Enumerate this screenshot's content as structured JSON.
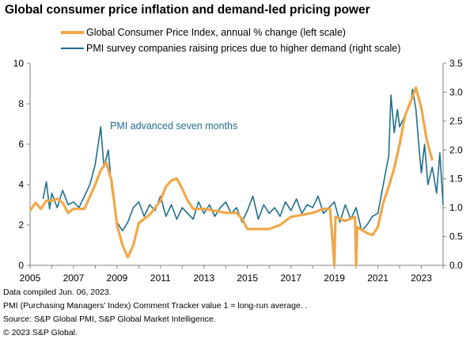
{
  "header": {
    "title": "Global consumer price inflation and demand-led pricing power"
  },
  "chart_data": {
    "type": "line",
    "title": "Global consumer price inflation and demand-led pricing power",
    "xlabel": "",
    "ylabel": "",
    "x_range": [
      2005,
      2024.0
    ],
    "x_ticks": [
      "2005",
      "2007",
      "2009",
      "2011",
      "2013",
      "2015",
      "2017",
      "2019",
      "2021",
      "2023"
    ],
    "y_left": {
      "range": [
        0,
        10
      ],
      "ticks": [
        "0",
        "2",
        "4",
        "6",
        "8",
        "10"
      ]
    },
    "y_right": {
      "range": [
        0.0,
        3.5
      ],
      "ticks": [
        "0.0",
        "0.5",
        "1.0",
        "1.5",
        "2.0",
        "2.5",
        "3.0",
        "3.5"
      ]
    },
    "grid": false,
    "legend_position": "top",
    "colors": {
      "cpi": "#f0a848",
      "pmi": "#1f6e8c"
    },
    "series": [
      {
        "name": "Global Consumer Price Index, annual % change (left scale)",
        "axis": "left",
        "points": [
          [
            2005.0,
            2.7
          ],
          [
            2005.25,
            3.1
          ],
          [
            2005.5,
            2.8
          ],
          [
            2005.75,
            3.2
          ],
          [
            2006.0,
            3.2
          ],
          [
            2006.25,
            3.3
          ],
          [
            2006.5,
            3.1
          ],
          [
            2006.75,
            2.6
          ],
          [
            2007.0,
            2.8
          ],
          [
            2007.25,
            2.8
          ],
          [
            2007.5,
            2.8
          ],
          [
            2007.75,
            3.4
          ],
          [
            2008.0,
            4.0
          ],
          [
            2008.25,
            4.7
          ],
          [
            2008.5,
            5.1
          ],
          [
            2008.75,
            4.2
          ],
          [
            2009.0,
            2.0
          ],
          [
            2009.25,
            1.0
          ],
          [
            2009.5,
            0.4
          ],
          [
            2009.75,
            1.0
          ],
          [
            2010.0,
            2.1
          ],
          [
            2010.5,
            2.5
          ],
          [
            2011.0,
            3.2
          ],
          [
            2011.25,
            3.9
          ],
          [
            2011.5,
            4.2
          ],
          [
            2011.75,
            4.3
          ],
          [
            2012.0,
            3.8
          ],
          [
            2012.25,
            3.2
          ],
          [
            2012.5,
            2.8
          ],
          [
            2013.0,
            2.8
          ],
          [
            2013.5,
            2.7
          ],
          [
            2014.0,
            2.6
          ],
          [
            2014.5,
            2.6
          ],
          [
            2014.75,
            2.3
          ],
          [
            2015.0,
            1.8
          ],
          [
            2015.5,
            1.8
          ],
          [
            2016.0,
            1.8
          ],
          [
            2016.5,
            2.0
          ],
          [
            2017.0,
            2.4
          ],
          [
            2017.5,
            2.5
          ],
          [
            2018.0,
            2.6
          ],
          [
            2018.5,
            2.8
          ],
          [
            2018.8,
            2.8
          ],
          [
            2019.0,
            0.0
          ],
          [
            2019.05,
            2.4
          ],
          [
            2019.5,
            2.2
          ],
          [
            2019.95,
            2.4
          ],
          [
            2020.0,
            0.0
          ],
          [
            2020.05,
            1.9
          ],
          [
            2020.5,
            1.6
          ],
          [
            2020.75,
            1.5
          ],
          [
            2021.0,
            1.9
          ],
          [
            2021.25,
            3.1
          ],
          [
            2021.5,
            3.9
          ],
          [
            2021.75,
            4.8
          ],
          [
            2022.0,
            6.0
          ],
          [
            2022.25,
            7.4
          ],
          [
            2022.5,
            8.1
          ],
          [
            2022.75,
            8.8
          ],
          [
            2023.0,
            7.8
          ],
          [
            2023.25,
            6.2
          ],
          [
            2023.5,
            5.2
          ]
        ]
      },
      {
        "name": "PMI survey companies raising prices due to higher demand (right scale)",
        "axis": "right",
        "points": [
          [
            2005.6,
            1.15
          ],
          [
            2005.75,
            1.45
          ],
          [
            2005.9,
            0.98
          ],
          [
            2006.0,
            1.25
          ],
          [
            2006.25,
            1.0
          ],
          [
            2006.5,
            1.3
          ],
          [
            2006.75,
            1.05
          ],
          [
            2007.0,
            1.1
          ],
          [
            2007.25,
            1.0
          ],
          [
            2007.5,
            1.2
          ],
          [
            2007.75,
            1.4
          ],
          [
            2008.0,
            1.75
          ],
          [
            2008.25,
            2.4
          ],
          [
            2008.4,
            1.7
          ],
          [
            2008.6,
            2.0
          ],
          [
            2008.75,
            1.35
          ],
          [
            2009.0,
            0.75
          ],
          [
            2009.25,
            0.6
          ],
          [
            2009.5,
            0.75
          ],
          [
            2009.75,
            1.0
          ],
          [
            2010.0,
            1.1
          ],
          [
            2010.25,
            0.85
          ],
          [
            2010.5,
            1.05
          ],
          [
            2010.75,
            0.95
          ],
          [
            2011.0,
            1.2
          ],
          [
            2011.25,
            0.85
          ],
          [
            2011.5,
            1.05
          ],
          [
            2011.75,
            0.8
          ],
          [
            2012.0,
            1.0
          ],
          [
            2012.25,
            0.9
          ],
          [
            2012.5,
            0.8
          ],
          [
            2012.75,
            1.1
          ],
          [
            2013.0,
            0.9
          ],
          [
            2013.25,
            1.05
          ],
          [
            2013.5,
            0.85
          ],
          [
            2013.75,
            1.0
          ],
          [
            2014.0,
            1.1
          ],
          [
            2014.25,
            0.9
          ],
          [
            2014.5,
            1.0
          ],
          [
            2014.75,
            0.75
          ],
          [
            2015.0,
            0.95
          ],
          [
            2015.25,
            1.2
          ],
          [
            2015.5,
            0.8
          ],
          [
            2015.75,
            1.05
          ],
          [
            2016.0,
            0.9
          ],
          [
            2016.25,
            1.0
          ],
          [
            2016.5,
            0.85
          ],
          [
            2016.75,
            1.1
          ],
          [
            2017.0,
            0.95
          ],
          [
            2017.25,
            1.15
          ],
          [
            2017.5,
            0.9
          ],
          [
            2017.75,
            1.05
          ],
          [
            2018.0,
            1.0
          ],
          [
            2018.25,
            1.2
          ],
          [
            2018.5,
            0.9
          ],
          [
            2018.75,
            1.0
          ],
          [
            2019.0,
            1.1
          ],
          [
            2019.25,
            0.75
          ],
          [
            2019.5,
            1.05
          ],
          [
            2019.75,
            0.8
          ],
          [
            2020.0,
            1.0
          ],
          [
            2020.25,
            0.6
          ],
          [
            2020.5,
            0.7
          ],
          [
            2020.75,
            0.85
          ],
          [
            2021.0,
            0.9
          ],
          [
            2021.25,
            1.4
          ],
          [
            2021.5,
            1.9
          ],
          [
            2021.6,
            2.95
          ],
          [
            2021.75,
            2.3
          ],
          [
            2021.9,
            2.7
          ],
          [
            2022.0,
            2.4
          ],
          [
            2022.25,
            2.6
          ],
          [
            2022.5,
            2.8
          ],
          [
            2022.6,
            3.05
          ],
          [
            2022.75,
            2.7
          ],
          [
            2022.9,
            2.0
          ],
          [
            2023.0,
            1.6
          ],
          [
            2023.15,
            2.1
          ],
          [
            2023.3,
            1.4
          ],
          [
            2023.5,
            1.7
          ],
          [
            2023.7,
            1.25
          ],
          [
            2023.85,
            1.95
          ],
          [
            2024.0,
            1.05
          ]
        ]
      }
    ],
    "annotations": [
      {
        "text": "PMI advanced seven months",
        "x": 2008.3,
        "y_right": 2.4
      }
    ]
  },
  "footer": {
    "line1": "Data compiled Jun. 06, 2023.",
    "line2": "PMI (Purchasing Managers' Index) Comment Tracker value 1 = long-run average. .",
    "line3": "Source: S&P Global PMI, S&P Global Market Intelligence.",
    "line4": "© 2023 S&P Global."
  }
}
